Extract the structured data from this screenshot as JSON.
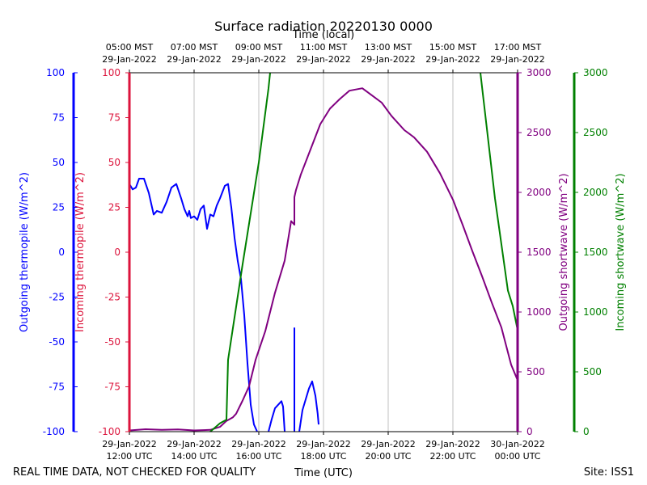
{
  "title": "Surface radiation 20220130 0000",
  "footer": {
    "left_note": "REAL TIME DATA, NOT CHECKED FOR QUALITY",
    "right_note": "Site: ISS1"
  },
  "chart_data": {
    "type": "line",
    "title": "Surface radiation 20220130 0000",
    "xlabel": "Time (UTC)",
    "x2label": "Time (local)",
    "xlim_utc_hours": [
      12,
      24
    ],
    "bottom_ticks": [
      {
        "hour": 12,
        "line1": "29-Jan-2022",
        "line2": "12:00 UTC"
      },
      {
        "hour": 14,
        "line1": "29-Jan-2022",
        "line2": "14:00 UTC"
      },
      {
        "hour": 16,
        "line1": "29-Jan-2022",
        "line2": "16:00 UTC"
      },
      {
        "hour": 18,
        "line1": "29-Jan-2022",
        "line2": "18:00 UTC"
      },
      {
        "hour": 20,
        "line1": "29-Jan-2022",
        "line2": "20:00 UTC"
      },
      {
        "hour": 22,
        "line1": "29-Jan-2022",
        "line2": "22:00 UTC"
      },
      {
        "hour": 24,
        "line1": "30-Jan-2022",
        "line2": "00:00 UTC"
      }
    ],
    "top_ticks": [
      {
        "hour": 12,
        "line1": "05:00 MST",
        "line2": "29-Jan-2022"
      },
      {
        "hour": 14,
        "line1": "07:00 MST",
        "line2": "29-Jan-2022"
      },
      {
        "hour": 16,
        "line1": "09:00 MST",
        "line2": "29-Jan-2022"
      },
      {
        "hour": 18,
        "line1": "11:00 MST",
        "line2": "29-Jan-2022"
      },
      {
        "hour": 20,
        "line1": "13:00 MST",
        "line2": "29-Jan-2022"
      },
      {
        "hour": 22,
        "line1": "15:00 MST",
        "line2": "29-Jan-2022"
      },
      {
        "hour": 24,
        "line1": "17:00 MST",
        "line2": "29-Jan-2022"
      }
    ],
    "grid": "vertical",
    "axes": [
      {
        "name": "Outgoing thermopile (W/m^2)",
        "side": "left-outer",
        "color": "#0000ff",
        "ylim": [
          -100,
          100
        ],
        "ticks": [
          -100,
          -75,
          -50,
          -25,
          0,
          25,
          50,
          75,
          100
        ]
      },
      {
        "name": "Incoming thermopile (W/m^2)",
        "side": "left-inner",
        "color": "#dc143c",
        "ylim": [
          -100,
          100
        ],
        "ticks": [
          -100,
          -75,
          -50,
          -25,
          0,
          25,
          50,
          75,
          100
        ]
      },
      {
        "name": "Outgoing shortwave (W/m^2)",
        "side": "right-inner",
        "color": "#800080",
        "ylim": [
          0,
          3000
        ],
        "ticks": [
          0,
          500,
          1000,
          1500,
          2000,
          2500,
          3000
        ]
      },
      {
        "name": "Incoming shortwave (W/m^2)",
        "side": "right-outer",
        "color": "#008000",
        "ylim": [
          0,
          3000
        ],
        "ticks": [
          0,
          500,
          1000,
          1500,
          2000,
          2500,
          3000
        ]
      }
    ],
    "series": [
      {
        "name": "Outgoing thermopile (W/m^2)",
        "axis": 0,
        "color": "#0000ff",
        "segments": [
          [
            [
              12.0,
              38
            ],
            [
              12.1,
              35
            ],
            [
              12.2,
              36
            ],
            [
              12.3,
              41
            ],
            [
              12.45,
              41
            ],
            [
              12.6,
              33
            ],
            [
              12.75,
              21
            ],
            [
              12.85,
              23
            ],
            [
              13.0,
              22
            ],
            [
              13.15,
              28
            ],
            [
              13.3,
              36
            ],
            [
              13.45,
              38
            ],
            [
              13.6,
              30
            ],
            [
              13.7,
              24
            ],
            [
              13.8,
              20
            ],
            [
              13.85,
              23
            ],
            [
              13.9,
              19
            ],
            [
              14.0,
              20
            ],
            [
              14.1,
              18
            ],
            [
              14.2,
              24
            ],
            [
              14.3,
              26
            ],
            [
              14.4,
              13
            ],
            [
              14.5,
              21
            ],
            [
              14.6,
              20
            ],
            [
              14.7,
              26
            ],
            [
              14.8,
              30
            ],
            [
              14.95,
              37
            ],
            [
              15.05,
              38
            ],
            [
              15.15,
              25
            ],
            [
              15.25,
              8
            ],
            [
              15.35,
              -5
            ],
            [
              15.45,
              -15
            ],
            [
              15.55,
              -35
            ],
            [
              15.65,
              -62
            ],
            [
              15.75,
              -85
            ],
            [
              15.85,
              -96
            ],
            [
              15.95,
              -100
            ]
          ],
          [
            [
              16.3,
              -100
            ],
            [
              16.4,
              -93
            ],
            [
              16.5,
              -87
            ],
            [
              16.6,
              -85
            ],
            [
              16.7,
              -83
            ],
            [
              16.75,
              -86
            ],
            [
              16.8,
              -100
            ]
          ],
          [
            [
              17.1,
              -42
            ],
            [
              17.1,
              -100
            ]
          ],
          [
            [
              17.25,
              -100
            ],
            [
              17.35,
              -88
            ],
            [
              17.45,
              -82
            ],
            [
              17.55,
              -76
            ],
            [
              17.65,
              -72
            ],
            [
              17.75,
              -80
            ],
            [
              17.82,
              -90
            ],
            [
              17.85,
              -96
            ]
          ]
        ]
      },
      {
        "name": "Outgoing shortwave (W/m^2)",
        "axis": 2,
        "color": "#800080",
        "segments": [
          [
            [
              12.0,
              10
            ],
            [
              12.5,
              20
            ],
            [
              13.0,
              15
            ],
            [
              13.5,
              18
            ],
            [
              14.0,
              10
            ],
            [
              14.5,
              15
            ],
            [
              14.8,
              40
            ],
            [
              15.0,
              90
            ],
            [
              15.2,
              120
            ],
            [
              15.3,
              150
            ],
            [
              15.5,
              260
            ],
            [
              15.7,
              380
            ],
            [
              15.9,
              600
            ],
            [
              16.2,
              840
            ],
            [
              16.5,
              1160
            ],
            [
              16.8,
              1430
            ],
            [
              17.0,
              1760
            ],
            [
              17.1,
              1730
            ],
            [
              17.1,
              1850
            ],
            [
              17.1,
              1960
            ],
            [
              17.15,
              2020
            ],
            [
              17.3,
              2150
            ],
            [
              17.5,
              2290
            ],
            [
              17.7,
              2430
            ],
            [
              17.9,
              2570
            ],
            [
              18.2,
              2700
            ],
            [
              18.5,
              2780
            ],
            [
              18.8,
              2850
            ],
            [
              19.2,
              2870
            ],
            [
              19.5,
              2810
            ],
            [
              19.8,
              2750
            ],
            [
              20.1,
              2640
            ],
            [
              20.5,
              2520
            ],
            [
              20.8,
              2460
            ],
            [
              21.2,
              2340
            ],
            [
              21.6,
              2160
            ],
            [
              22.0,
              1940
            ],
            [
              22.3,
              1730
            ],
            [
              22.6,
              1510
            ],
            [
              22.9,
              1300
            ],
            [
              23.2,
              1080
            ],
            [
              23.5,
              870
            ],
            [
              23.8,
              560
            ],
            [
              24.0,
              430
            ]
          ]
        ]
      },
      {
        "name": "Incoming shortwave (W/m^2)",
        "axis": 3,
        "color": "#008000",
        "segments": [
          [
            [
              14.5,
              0
            ],
            [
              14.8,
              70
            ],
            [
              15.0,
              100
            ],
            [
              15.05,
              600
            ],
            [
              15.5,
              1400
            ],
            [
              16.0,
              2250
            ],
            [
              16.3,
              2870
            ],
            [
              16.35,
              3000
            ]
          ],
          [
            [
              22.85,
              3000
            ],
            [
              23.3,
              1950
            ],
            [
              23.7,
              1180
            ],
            [
              23.85,
              1050
            ],
            [
              24.0,
              850
            ]
          ]
        ]
      }
    ]
  }
}
